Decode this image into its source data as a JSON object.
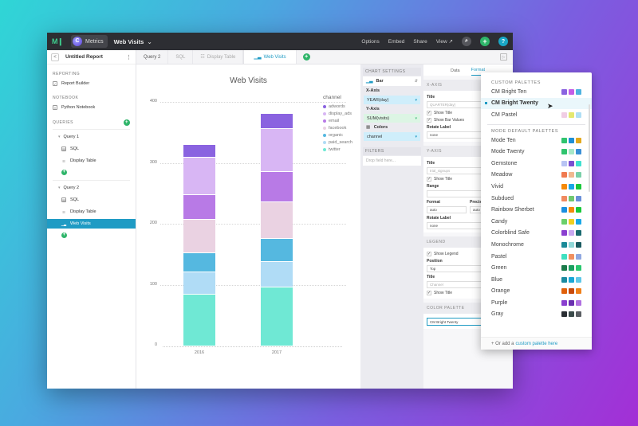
{
  "topbar": {
    "logo": "M❙",
    "org_initial": "C",
    "org_name": "Metrics",
    "report_name": "Web Visits",
    "links": [
      "Options",
      "Embed",
      "Share",
      "View ↗"
    ],
    "search_icon": "⌕",
    "add_icon": "+",
    "help_icon": "?"
  },
  "sidebar": {
    "report_title": "Untitled Report",
    "back_icon": "<",
    "menu_icon": "⋮",
    "sections": {
      "reporting": "REPORTING",
      "notebook": "NOTEBOOK",
      "queries": "QUERIES"
    },
    "report_builder": "Report Builder",
    "python_notebook": "Python Notebook",
    "queries": [
      {
        "name": "Query 1",
        "items": [
          "SQL",
          "Display Table"
        ]
      },
      {
        "name": "Query 2",
        "items": [
          "SQL",
          "Display Table",
          "Web Visits"
        ]
      }
    ]
  },
  "tabs": [
    {
      "label": "Query 2"
    },
    {
      "label": "SQL"
    },
    {
      "label": "Display Table"
    },
    {
      "label": "Web Visits"
    }
  ],
  "chart_settings": {
    "header": "CHART SETTINGS",
    "chart_type": "Bar",
    "x_axis_label": "X-Axis",
    "x_axis_value": "YEAR(day)",
    "y_axis_label": "Y-Axis",
    "y_axis_value": "SUM(visits)",
    "colors_label": "Colors",
    "colors_value": "channel",
    "filters_header": "FILTERS",
    "filters_placeholder": "Drop field here..."
  },
  "format_panel": {
    "tabs": [
      "Data",
      "Format"
    ],
    "x_axis": {
      "header": "X-AXIS",
      "title_label": "Title",
      "title_placeholder": "QUARTER(day)",
      "show_title": "Show Title",
      "show_bar_values": "Show Bar Values",
      "rotate_label": "Rotate Label",
      "rotate_value": "none"
    },
    "y_axis": {
      "header": "Y-AXIS",
      "title_label": "Title",
      "title_placeholder": "trial_signups",
      "show_title": "Show Title",
      "range_label": "Range",
      "range_min_placeholder": "min",
      "format_label": "Format",
      "format_value": "auto",
      "precision_label": "Precision",
      "precision_value": "auto",
      "rotate_label": "Rotate Label",
      "rotate_value": "none"
    },
    "legend": {
      "header": "LEGEND",
      "show_legend": "Show Legend",
      "position_label": "Position",
      "position_value": "Top",
      "title_label": "Title",
      "title_placeholder": "Channel",
      "show_title": "Show Title"
    },
    "color_palette": {
      "header": "COLOR PALETTE",
      "value": "CM Bright Twenty"
    }
  },
  "palette_dropdown": {
    "custom_header": "CUSTOM PALETTES",
    "default_header": "MODE DEFAULT PALETTES",
    "custom": [
      {
        "name": "CM Bright Ten",
        "colors": [
          "#8a63e0",
          "#c45ee6",
          "#4fb3e0"
        ]
      },
      {
        "name": "CM Bright Twenty",
        "colors": [],
        "selected": true
      },
      {
        "name": "CM Pastel",
        "colors": [
          "#f0cde4",
          "#e4e870",
          "#b0dff5"
        ]
      }
    ],
    "defaults": [
      {
        "name": "Mode Ten",
        "colors": [
          "#2fc46e",
          "#1f8fd6",
          "#e3a81c"
        ]
      },
      {
        "name": "Mode Twenty",
        "colors": [
          "#2fc46e",
          "#a8e8c8",
          "#3a8fd6"
        ]
      },
      {
        "name": "Gemstone",
        "colors": [
          "#b8c4f4",
          "#7a4fd0",
          "#3fe0d0"
        ]
      },
      {
        "name": "Meadow",
        "colors": [
          "#f07a50",
          "#f0b890",
          "#7ad0a8"
        ]
      },
      {
        "name": "Vivid",
        "colors": [
          "#f58a0a",
          "#1aa7e6",
          "#1ac83a"
        ]
      },
      {
        "name": "Subdued",
        "colors": [
          "#f08a60",
          "#70c870",
          "#6a90d8"
        ]
      },
      {
        "name": "Rainbow Sherbet",
        "colors": [
          "#1a8fe0",
          "#f58a0a",
          "#1ac83a"
        ]
      },
      {
        "name": "Candy",
        "colors": [
          "#6ad06a",
          "#f0d020",
          "#1aa7e6"
        ]
      },
      {
        "name": "Colorblind Safe",
        "colors": [
          "#8a3fd0",
          "#c8a8f0",
          "#1a6a70"
        ]
      },
      {
        "name": "Monochrome",
        "colors": [
          "#1a8a98",
          "#90d8d8",
          "#1a5a60"
        ]
      },
      {
        "name": "Pastel",
        "colors": [
          "#3fe0c0",
          "#f09060",
          "#90a8e0"
        ]
      },
      {
        "name": "Green",
        "colors": [
          "#1a7a4a",
          "#1aa060",
          "#2ac870"
        ]
      },
      {
        "name": "Blue",
        "colors": [
          "#1a8aa0",
          "#1aa7d6",
          "#60c8e8"
        ]
      },
      {
        "name": "Orange",
        "colors": [
          "#e0600a",
          "#c84a0a",
          "#f0801a"
        ]
      },
      {
        "name": "Purple",
        "colors": [
          "#8a3fd0",
          "#6a30b0",
          "#b070e0"
        ]
      },
      {
        "name": "Gray",
        "colors": [
          "#2a2e33",
          "#3a4a4a",
          "#5a5e63"
        ]
      }
    ],
    "footer_prefix": "+ Or add a",
    "footer_link": "custom palette here"
  },
  "chart_data": {
    "type": "bar",
    "stacked": true,
    "title": "Web Visits",
    "xlabel": "",
    "ylabel": "",
    "categories": [
      "2016",
      "2017"
    ],
    "ylim": [
      0,
      400
    ],
    "yticks": [
      0,
      100,
      200,
      300,
      400
    ],
    "grid": true,
    "legend_title": "channel",
    "legend_position": "right",
    "series": [
      {
        "name": "twitter",
        "color": "#6fe8d4",
        "values": [
          85,
          97
        ]
      },
      {
        "name": "paid_search",
        "color": "#b0dcf6",
        "values": [
          36,
          41
        ]
      },
      {
        "name": "organic",
        "color": "#55b8e0",
        "values": [
          32,
          38
        ]
      },
      {
        "name": "facebook",
        "color": "#ead2e2",
        "values": [
          55,
          61
        ]
      },
      {
        "name": "email",
        "color": "#b87ae6",
        "values": [
          40,
          49
        ]
      },
      {
        "name": "display_ads",
        "color": "#d8b6f4",
        "values": [
          62,
          71
        ]
      },
      {
        "name": "adwords",
        "color": "#8a63e0",
        "values": [
          21,
          25
        ]
      }
    ],
    "legend_order": [
      "adwords",
      "display_ads",
      "email",
      "facebook",
      "organic",
      "paid_search",
      "twitter"
    ]
  }
}
